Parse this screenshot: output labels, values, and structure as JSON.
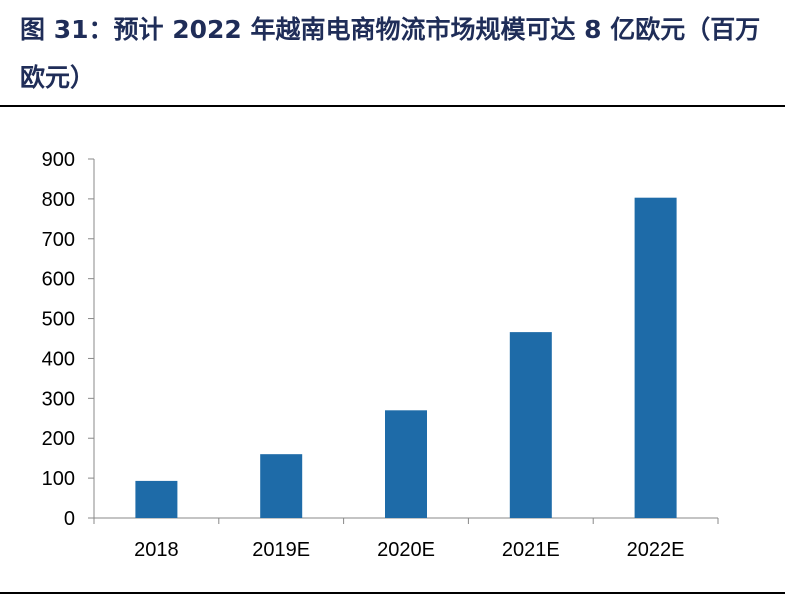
{
  "figure": {
    "title": "图 31：预计 2022 年越南电商物流市场规模可达 8 亿欧元（百万欧元）"
  },
  "chart_data": {
    "type": "bar",
    "categories": [
      "2018",
      "2019E",
      "2020E",
      "2021E",
      "2022E"
    ],
    "values": [
      93,
      160,
      270,
      466,
      803
    ],
    "ylim": [
      0,
      900
    ],
    "yticks": [
      "0",
      "100",
      "200",
      "300",
      "400",
      "500",
      "600",
      "700",
      "800",
      "900"
    ],
    "grid": false,
    "legend": "none",
    "bar_color": "#1e6ba8"
  }
}
